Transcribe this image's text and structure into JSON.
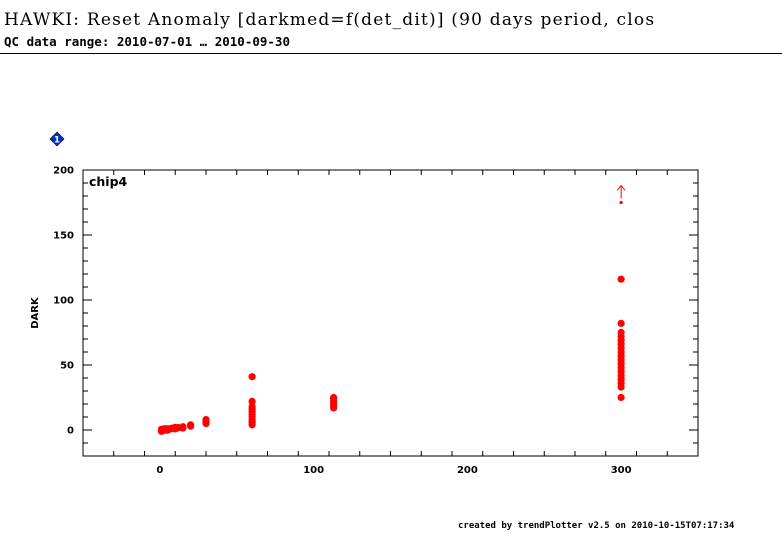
{
  "header": {
    "title": "HAWKI: Reset Anomaly [darkmed=f(det_dit)] (90 days period, clos",
    "subtitle": "QC data range: 2010-07-01 … 2010-09-30"
  },
  "footer": {
    "text": "created by trendPlotter v2.5 on 2010-10-15T07:17:34"
  },
  "panel": {
    "badge_label": "1",
    "badge_color": "#0033cc"
  },
  "chart_data": {
    "type": "scatter",
    "panel_label": "chip4",
    "ylabel": "DARK",
    "xlabel": "",
    "xlim": [
      -50,
      350
    ],
    "ylim": [
      -20,
      200
    ],
    "xticks": [
      0,
      100,
      200,
      300
    ],
    "yticks": [
      0,
      50,
      100,
      150,
      200
    ],
    "color": "#ff0000",
    "points": [
      [
        1,
        -1
      ],
      [
        1,
        0.5
      ],
      [
        2,
        -0.5
      ],
      [
        3,
        0
      ],
      [
        3,
        1
      ],
      [
        4,
        0.3
      ],
      [
        5,
        -0.2
      ],
      [
        5,
        1
      ],
      [
        6,
        0.5
      ],
      [
        7,
        1
      ],
      [
        8,
        1.5
      ],
      [
        9,
        1.2
      ],
      [
        10,
        2
      ],
      [
        10,
        0.8
      ],
      [
        12,
        1.8
      ],
      [
        15,
        2.5
      ],
      [
        15,
        1.5
      ],
      [
        20,
        3
      ],
      [
        20,
        4
      ],
      [
        30,
        5
      ],
      [
        30,
        7
      ],
      [
        30,
        8
      ],
      [
        60,
        4
      ],
      [
        60,
        6
      ],
      [
        60,
        8
      ],
      [
        60,
        10
      ],
      [
        60,
        12
      ],
      [
        60,
        14
      ],
      [
        60,
        16
      ],
      [
        60,
        18
      ],
      [
        60,
        22
      ],
      [
        60,
        41
      ],
      [
        113,
        17
      ],
      [
        113,
        19
      ],
      [
        113,
        21
      ],
      [
        113,
        22
      ],
      [
        113,
        24
      ],
      [
        113,
        25
      ],
      [
        300,
        25
      ],
      [
        300,
        33
      ],
      [
        300,
        36
      ],
      [
        300,
        39
      ],
      [
        300,
        42
      ],
      [
        300,
        45
      ],
      [
        300,
        48
      ],
      [
        300,
        51
      ],
      [
        300,
        54
      ],
      [
        300,
        57
      ],
      [
        300,
        60
      ],
      [
        300,
        63
      ],
      [
        300,
        66
      ],
      [
        300,
        69
      ],
      [
        300,
        72
      ],
      [
        300,
        75
      ],
      [
        300,
        82
      ],
      [
        300,
        116
      ]
    ],
    "outliers": [
      {
        "x": 300,
        "y": 175,
        "direction": "up"
      }
    ]
  }
}
